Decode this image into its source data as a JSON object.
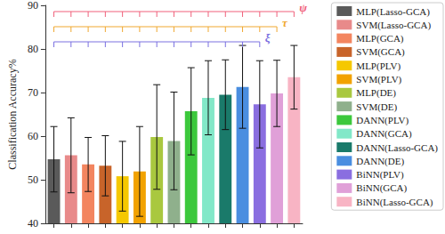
{
  "chart_data": {
    "type": "bar",
    "ylabel": "Classification Accuracy%",
    "ylim": [
      40,
      90
    ],
    "yticks": [
      40,
      50,
      60,
      70,
      80,
      90
    ],
    "grid": false,
    "legend": "right",
    "tick_labels": "y",
    "categories": [
      "MLP(Lasso-GCA)",
      "SVM(Lasso-GCA)",
      "MLP(GCA)",
      "SVM(GCA)",
      "MLP(PLV)",
      "SVM(PLV)",
      "MLP(DE)",
      "SVM(DE)",
      "DANN(PLV)",
      "DANN(GCA)",
      "DANN(Lasso-GCA)",
      "DANN(DE)",
      "BiNN(PLV)",
      "BiNN(GCA)",
      "BiNN(Lasso-GCA)"
    ],
    "values": [
      54.7,
      55.6,
      53.5,
      53.2,
      50.8,
      51.9,
      59.8,
      58.9,
      65.7,
      68.8,
      69.5,
      71.3,
      67.3,
      69.8,
      73.5
    ],
    "errors": [
      7.5,
      8.6,
      6.2,
      6.9,
      8.0,
      10.3,
      12.0,
      11.2,
      10.0,
      8.5,
      8.0,
      9.5,
      10.0,
      7.6,
      7.3
    ],
    "colors": [
      "#5a5a5a",
      "#e88a8a",
      "#f3855f",
      "#c8642a",
      "#f5c800",
      "#f2a200",
      "#a9c83f",
      "#8fb08c",
      "#3cc83c",
      "#82e8c8",
      "#1a7a6a",
      "#4a8ee0",
      "#8a6ee0",
      "#e0a0d8",
      "#f8b4c4"
    ],
    "annotations": [
      {
        "text": "ψ",
        "color": "#f0607a",
        "from": "MLP(Lasso-GCA)",
        "to": "BiNN(Lasso-GCA)"
      },
      {
        "text": "τ",
        "color": "#f0a830",
        "from": "MLP(Lasso-GCA)",
        "to": "BiNN(GCA)"
      },
      {
        "text": "ξ",
        "color": "#7a70e0",
        "from": "MLP(Lasso-GCA)",
        "to": "BiNN(PLV)"
      }
    ]
  }
}
